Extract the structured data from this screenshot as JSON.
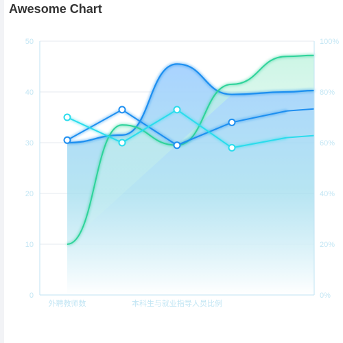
{
  "title": "Awesome Chart",
  "colors": {
    "axis": "#bfe3f3",
    "tick_text": "#c3e6f4",
    "grid": "#e6e9ef",
    "area_top": "#a9d3ff",
    "area_bottom": "#ffffff",
    "green": "#2fd39a",
    "blue": "#1f8ff0",
    "cyan": "#2bdcec"
  },
  "chart_data": {
    "type": "line",
    "categories_shown": [
      "外聘教师数",
      "本科生与就业指导人员比例"
    ],
    "x_positions": 5,
    "y_left": {
      "min": 0,
      "max": 50,
      "ticks": [
        "0",
        "10",
        "20",
        "30",
        "40",
        "50"
      ]
    },
    "y_right": {
      "min": 0,
      "max": 100,
      "ticks": [
        "0%",
        "20%",
        "40%",
        "60%",
        "80%",
        "100%"
      ]
    },
    "grid": true,
    "series": [
      {
        "type": "area",
        "axis": "left",
        "smooth": true,
        "values": [
          30,
          31.5,
          45.5,
          39.5,
          40
        ],
        "color": "#1f8ff0",
        "markers": false
      },
      {
        "type": "line",
        "axis": "left",
        "smooth": true,
        "values": [
          10,
          33.5,
          29.5,
          41.5,
          47
        ],
        "color": "#2fd39a",
        "markers": false
      },
      {
        "type": "line",
        "axis": "right",
        "smooth": false,
        "values": [
          61,
          73,
          59,
          68,
          72.5
        ],
        "color": "#1f8ff0",
        "markers": true
      },
      {
        "type": "line",
        "axis": "right",
        "smooth": false,
        "values": [
          70,
          60,
          73,
          58,
          62
        ],
        "color": "#2bdcec",
        "markers": true
      }
    ]
  }
}
